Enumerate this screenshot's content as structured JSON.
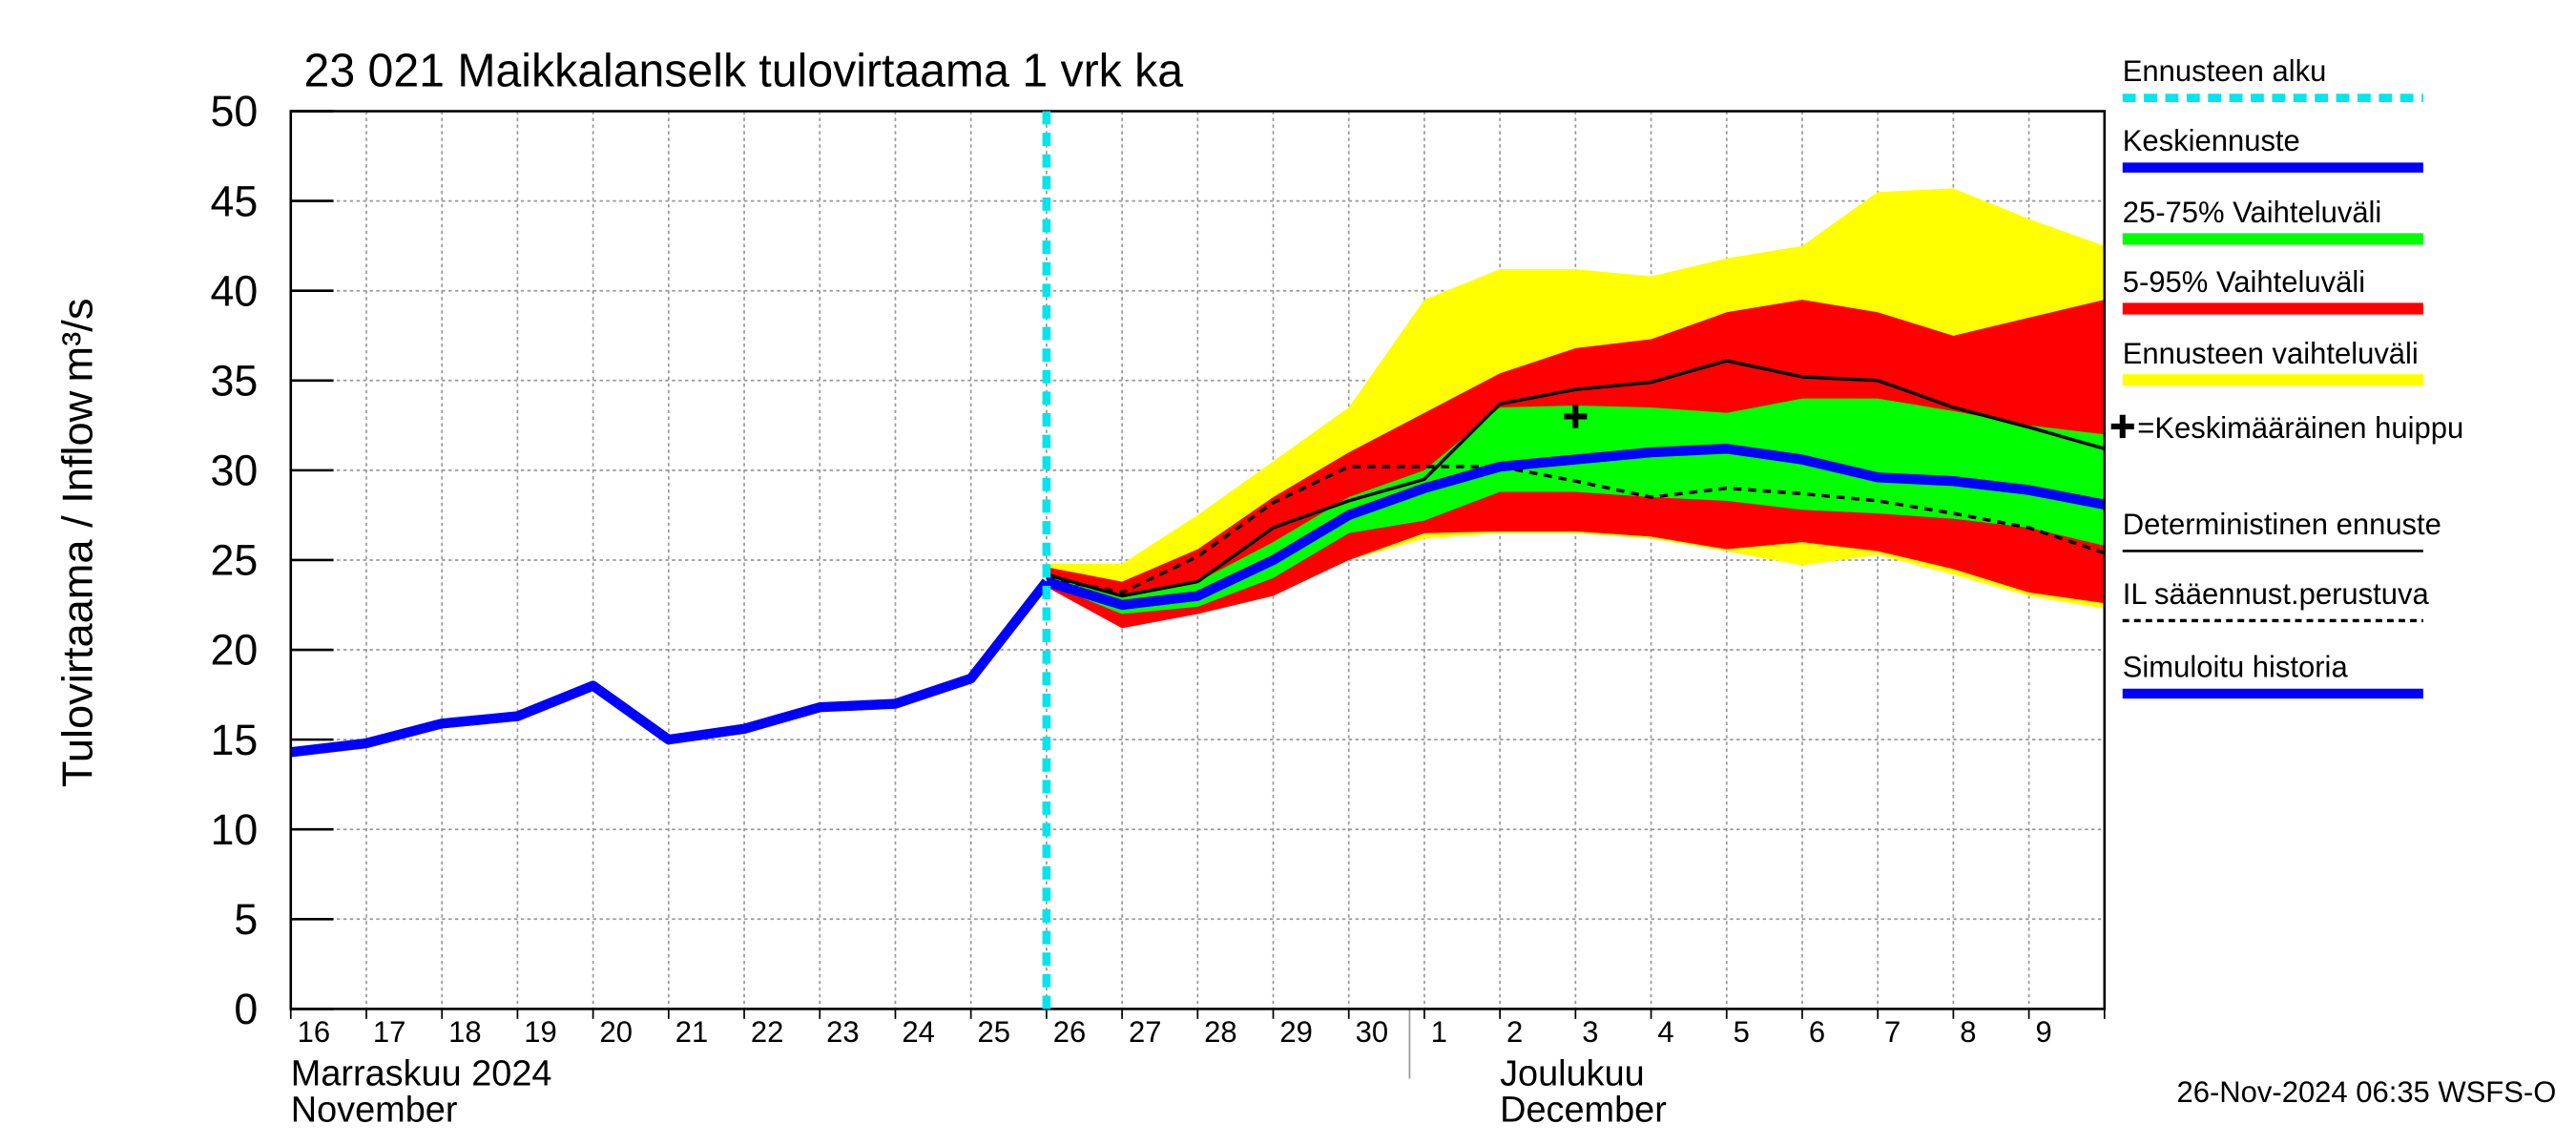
{
  "chart_data": {
    "type": "line",
    "title": "23 021 Maikkalanselk tulovirtaama 1 vrk ka",
    "y_label": "Tulovirtaama / Inflow",
    "y_unit": "m³/s",
    "categories": [
      "16",
      "17",
      "18",
      "19",
      "20",
      "21",
      "22",
      "23",
      "24",
      "25",
      "26",
      "27",
      "28",
      "29",
      "30",
      "1",
      "2",
      "3",
      "4",
      "5",
      "6",
      "7",
      "8",
      "9",
      null
    ],
    "months": [
      {
        "name": "Marraskuu 2024",
        "name_en": "November",
        "start": "16"
      },
      {
        "name": "Joulukuu",
        "name_en": "December",
        "start": "1"
      }
    ],
    "ylim": [
      0,
      50
    ],
    "yticks": [
      0,
      5,
      10,
      15,
      20,
      25,
      30,
      35,
      40,
      45,
      50
    ],
    "grid": true,
    "forecast_start": {
      "name": "Ennusteen alku",
      "x": "26",
      "color": "#00e5ee"
    },
    "peak": {
      "name": "=Keskimääräinen huippu",
      "x": "3",
      "value": 33,
      "color": "#000000"
    },
    "series": [
      {
        "name": "Keskiennuste",
        "kind": "line",
        "color": "#0000ff",
        "values": [
          null,
          null,
          null,
          null,
          null,
          null,
          null,
          null,
          null,
          null,
          23.8,
          22.5,
          23.0,
          25.0,
          27.5,
          29.0,
          30.2,
          30.6,
          31.0,
          31.2,
          30.6,
          29.6,
          29.4,
          28.9,
          28.1
        ]
      },
      {
        "name": "25-75% Vaihteluväli",
        "kind": "band",
        "color": "#00ff00",
        "lower": [
          null,
          null,
          null,
          null,
          null,
          null,
          null,
          null,
          null,
          null,
          23.7,
          22.0,
          22.4,
          24.0,
          26.5,
          27.2,
          28.8,
          28.8,
          28.5,
          28.3,
          27.8,
          27.6,
          27.3,
          26.8,
          25.8
        ],
        "upper": [
          null,
          null,
          null,
          null,
          null,
          null,
          null,
          null,
          null,
          null,
          24.2,
          23.0,
          23.8,
          26.0,
          28.5,
          30.0,
          33.5,
          33.6,
          33.5,
          33.2,
          34.0,
          34.0,
          33.3,
          32.5,
          32.0
        ]
      },
      {
        "name": "5-95% Vaihteluväli",
        "kind": "band",
        "color": "#ff0000",
        "lower": [
          null,
          null,
          null,
          null,
          null,
          null,
          null,
          null,
          null,
          null,
          23.5,
          21.2,
          22.0,
          23.0,
          25.0,
          26.5,
          26.6,
          26.6,
          26.3,
          25.6,
          26.0,
          25.5,
          24.5,
          23.2,
          22.6
        ],
        "upper": [
          null,
          null,
          null,
          null,
          null,
          null,
          null,
          null,
          null,
          null,
          24.6,
          23.8,
          25.6,
          28.5,
          31.0,
          33.2,
          35.4,
          36.8,
          37.3,
          38.8,
          39.5,
          38.8,
          37.5,
          38.5,
          39.5
        ]
      },
      {
        "name": "Ennusteen vaihteluväli",
        "kind": "band",
        "color": "#ffff00",
        "lower": [
          null,
          null,
          null,
          null,
          null,
          null,
          null,
          null,
          null,
          null,
          23.8,
          21.5,
          22.0,
          23.0,
          25.0,
          26.2,
          26.5,
          26.5,
          26.2,
          25.5,
          24.7,
          25.3,
          24.2,
          23.0,
          22.3
        ],
        "upper": [
          null,
          null,
          null,
          null,
          null,
          null,
          null,
          null,
          null,
          null,
          24.8,
          24.8,
          27.5,
          30.5,
          33.5,
          39.5,
          41.2,
          41.2,
          40.8,
          41.8,
          42.5,
          45.5,
          45.7,
          44.0,
          42.5
        ]
      },
      {
        "name": "Deterministinen ennuste",
        "kind": "line",
        "color": "#000000",
        "values": [
          null,
          null,
          null,
          null,
          null,
          null,
          null,
          null,
          null,
          null,
          24.2,
          23.0,
          23.8,
          26.8,
          28.3,
          29.5,
          33.7,
          34.5,
          34.9,
          36.1,
          35.2,
          35.0,
          33.5,
          32.4,
          31.2
        ]
      },
      {
        "name": "IL sääennust.perustuva",
        "kind": "line",
        "color": "#000000",
        "dashed": true,
        "values": [
          null,
          null,
          null,
          null,
          null,
          null,
          null,
          null,
          null,
          null,
          24.0,
          23.2,
          25.2,
          28.2,
          30.2,
          30.2,
          30.2,
          29.4,
          28.5,
          29.0,
          28.7,
          28.3,
          27.6,
          26.8,
          25.4
        ]
      },
      {
        "name": "Simuloitu historia",
        "kind": "line",
        "color": "#0000ff",
        "values": [
          14.3,
          14.8,
          15.9,
          16.3,
          18.0,
          15.0,
          15.6,
          16.8,
          17.0,
          18.4,
          23.8,
          null,
          null,
          null,
          null,
          null,
          null,
          null,
          null,
          null,
          null,
          null,
          null,
          null,
          null
        ]
      }
    ],
    "footer": "26-Nov-2024 06:35 WSFS-O"
  }
}
